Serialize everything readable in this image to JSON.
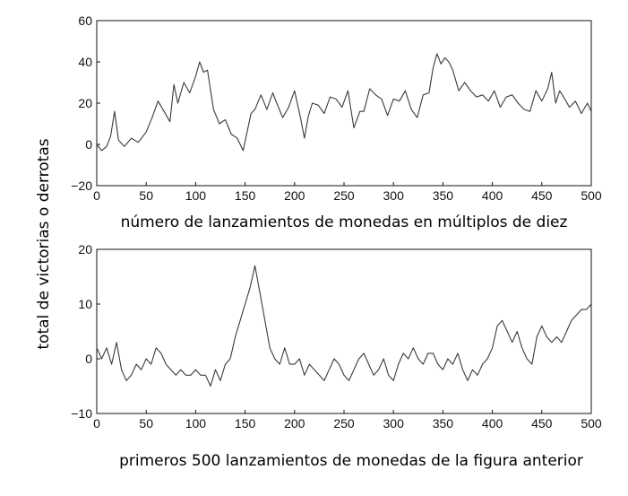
{
  "shared_ylabel": "total de victorias o derrotas",
  "colors": {
    "line": "#3a3a3a",
    "frame": "#111111",
    "background": "#ffffff"
  },
  "chart_data": [
    {
      "type": "line",
      "xlabel": "número de lanzamientos de monedas en múltiplos de diez",
      "xlim": [
        0,
        500
      ],
      "ylim": [
        -20,
        60
      ],
      "xticks": [
        0,
        50,
        100,
        150,
        200,
        250,
        300,
        350,
        400,
        450,
        500
      ],
      "yticks": [
        -20,
        0,
        20,
        40,
        60
      ],
      "grid": false,
      "series": [
        {
          "x": [
            0,
            5,
            10,
            14,
            18,
            22,
            28,
            35,
            42,
            50,
            56,
            62,
            68,
            74,
            78,
            82,
            88,
            94,
            100,
            104,
            108,
            112,
            118,
            124,
            130,
            136,
            142,
            148,
            152,
            156,
            160,
            166,
            172,
            178,
            182,
            188,
            194,
            200,
            206,
            210,
            214,
            218,
            224,
            230,
            236,
            242,
            248,
            254,
            260,
            266,
            270,
            276,
            282,
            288,
            294,
            300,
            306,
            312,
            318,
            324,
            330,
            336,
            340,
            344,
            348,
            352,
            356,
            360,
            366,
            372,
            378,
            384,
            390,
            396,
            402,
            408,
            414,
            420,
            426,
            432,
            438,
            444,
            450,
            456,
            460,
            464,
            468,
            472,
            478,
            484,
            490,
            496,
            500
          ],
          "y": [
            0,
            -3,
            -1,
            4,
            16,
            2,
            -1,
            3,
            1,
            6,
            13,
            21,
            16,
            11,
            29,
            20,
            30,
            25,
            33,
            40,
            35,
            36,
            17,
            10,
            12,
            5,
            3,
            -3,
            6,
            15,
            17,
            24,
            17,
            25,
            20,
            13,
            18,
            26,
            13,
            3,
            14,
            20,
            19,
            15,
            23,
            22,
            18,
            26,
            8,
            16,
            16,
            27,
            24,
            22,
            14,
            22,
            21,
            26,
            17,
            13,
            24,
            25,
            37,
            44,
            39,
            42,
            40,
            36,
            26,
            30,
            26,
            23,
            24,
            21,
            26,
            18,
            23,
            24,
            20,
            17,
            16,
            26,
            21,
            27,
            35,
            20,
            26,
            23,
            18,
            21,
            15,
            20,
            16
          ]
        }
      ]
    },
    {
      "type": "line",
      "xlabel": "primeros 500 lanzamientos de monedas de la figura anterior",
      "xlim": [
        0,
        500
      ],
      "ylim": [
        -10,
        20
      ],
      "xticks": [
        0,
        50,
        100,
        150,
        200,
        250,
        300,
        350,
        400,
        450,
        500
      ],
      "yticks": [
        -10,
        0,
        10,
        20
      ],
      "grid": false,
      "series": [
        {
          "x": [
            0,
            5,
            10,
            15,
            20,
            25,
            30,
            35,
            40,
            45,
            50,
            55,
            60,
            65,
            70,
            75,
            80,
            85,
            90,
            95,
            100,
            105,
            110,
            115,
            120,
            125,
            130,
            135,
            140,
            145,
            150,
            155,
            160,
            165,
            170,
            175,
            180,
            185,
            190,
            195,
            200,
            205,
            210,
            215,
            220,
            225,
            230,
            235,
            240,
            245,
            250,
            255,
            260,
            265,
            270,
            275,
            280,
            285,
            290,
            295,
            300,
            305,
            310,
            315,
            320,
            325,
            330,
            335,
            340,
            345,
            350,
            355,
            360,
            365,
            370,
            375,
            380,
            385,
            390,
            395,
            400,
            405,
            410,
            415,
            420,
            425,
            430,
            435,
            440,
            445,
            450,
            455,
            460,
            465,
            470,
            475,
            480,
            485,
            490,
            495,
            500
          ],
          "y": [
            2,
            0,
            2,
            -1,
            3,
            -2,
            -4,
            -3,
            -1,
            -2,
            0,
            -1,
            2,
            1,
            -1,
            -2,
            -3,
            -2,
            -3,
            -3,
            -2,
            -3,
            -3,
            -5,
            -2,
            -4,
            -1,
            0,
            4,
            7,
            10,
            13,
            17,
            12,
            7,
            2,
            0,
            -1,
            2,
            -1,
            -1,
            0,
            -3,
            -1,
            -2,
            -3,
            -4,
            -2,
            0,
            -1,
            -3,
            -4,
            -2,
            0,
            1,
            -1,
            -3,
            -2,
            0,
            -3,
            -4,
            -1,
            1,
            0,
            2,
            0,
            -1,
            1,
            1,
            -1,
            -2,
            0,
            -1,
            1,
            -2,
            -4,
            -2,
            -3,
            -1,
            0,
            2,
            6,
            7,
            5,
            3,
            5,
            2,
            0,
            -1,
            4,
            6,
            4,
            3,
            4,
            3,
            5,
            7,
            8,
            9,
            9,
            10
          ]
        }
      ]
    }
  ]
}
